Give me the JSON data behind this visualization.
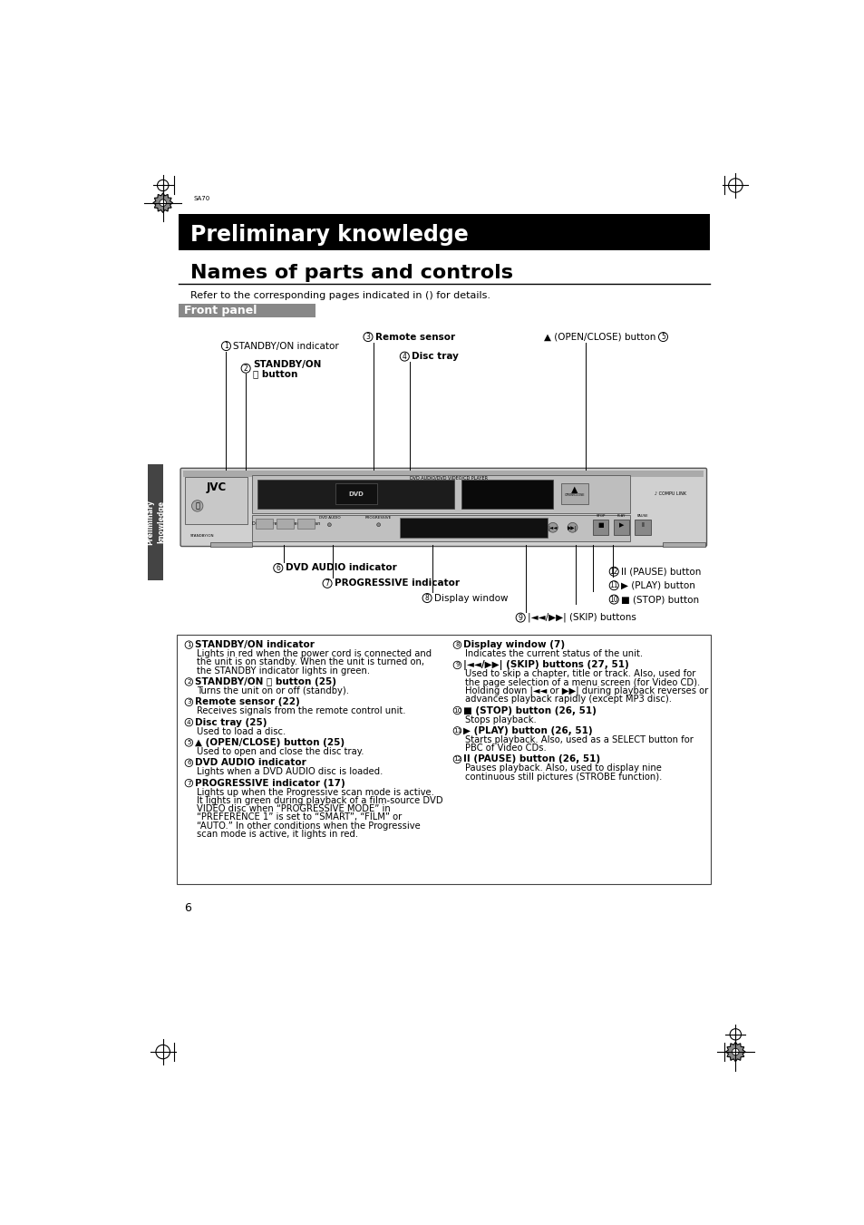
{
  "bg_color": "#ffffff",
  "header_bg": "#000000",
  "header_text": "Preliminary knowledge",
  "header_text_color": "#ffffff",
  "title": "Names of parts and controls",
  "subtitle": "Refer to the corresponding pages indicated in () for details.",
  "section_label": "Front panel",
  "page_number": "6",
  "items_left": [
    [
      "1",
      "STANDBY/ON indicator",
      "Lights in red when the power cord is connected and\nthe unit is on standby. When the unit is turned on,\nthe STANDBY indicator lights in green."
    ],
    [
      "2",
      "STANDBY/ON ⏼ button (25)",
      "Turns the unit on or off (standby)."
    ],
    [
      "3",
      "Remote sensor (22)",
      "Receives signals from the remote control unit."
    ],
    [
      "4",
      "Disc tray (25)",
      "Used to load a disc."
    ],
    [
      "5",
      "▲ (OPEN/CLOSE) button (25)",
      "Used to open and close the disc tray."
    ],
    [
      "6",
      "DVD AUDIO indicator",
      "Lights when a DVD AUDIO disc is loaded."
    ],
    [
      "7",
      "PROGRESSIVE indicator (17)",
      "Lights up when the Progressive scan mode is active.\nIt lights in green during playback of a film-source DVD\nVIDEO disc when “PROGRESSIVE MODE” in\n“PREFERENCE 1” is set to “SMART”, “FILM” or\n“AUTO.” In other conditions when the Progressive\nscan mode is active, it lights in red."
    ]
  ],
  "items_right": [
    [
      "8",
      "Display window (7)",
      "Indicates the current status of the unit."
    ],
    [
      "9",
      "|◄◄/▶▶| (SKIP) buttons (27, 51)",
      "Used to skip a chapter, title or track. Also, used for\nthe page selection of a menu screen (for Video CD).\nHolding down |◄◄ or ▶▶| during playback reverses or\nadvances playback rapidly (except MP3 disc)."
    ],
    [
      "10",
      "■ (STOP) button (26, 51)",
      "Stops playback."
    ],
    [
      "11",
      "▶ (PLAY) button (26, 51)",
      "Starts playback. Also, used as a SELECT button for\nPBC of Video CDs."
    ],
    [
      "12",
      "II (PAUSE) button (26, 51)",
      "Pauses playback. Also, used to display nine\ncontinuous still pictures (STROBE function)."
    ]
  ]
}
